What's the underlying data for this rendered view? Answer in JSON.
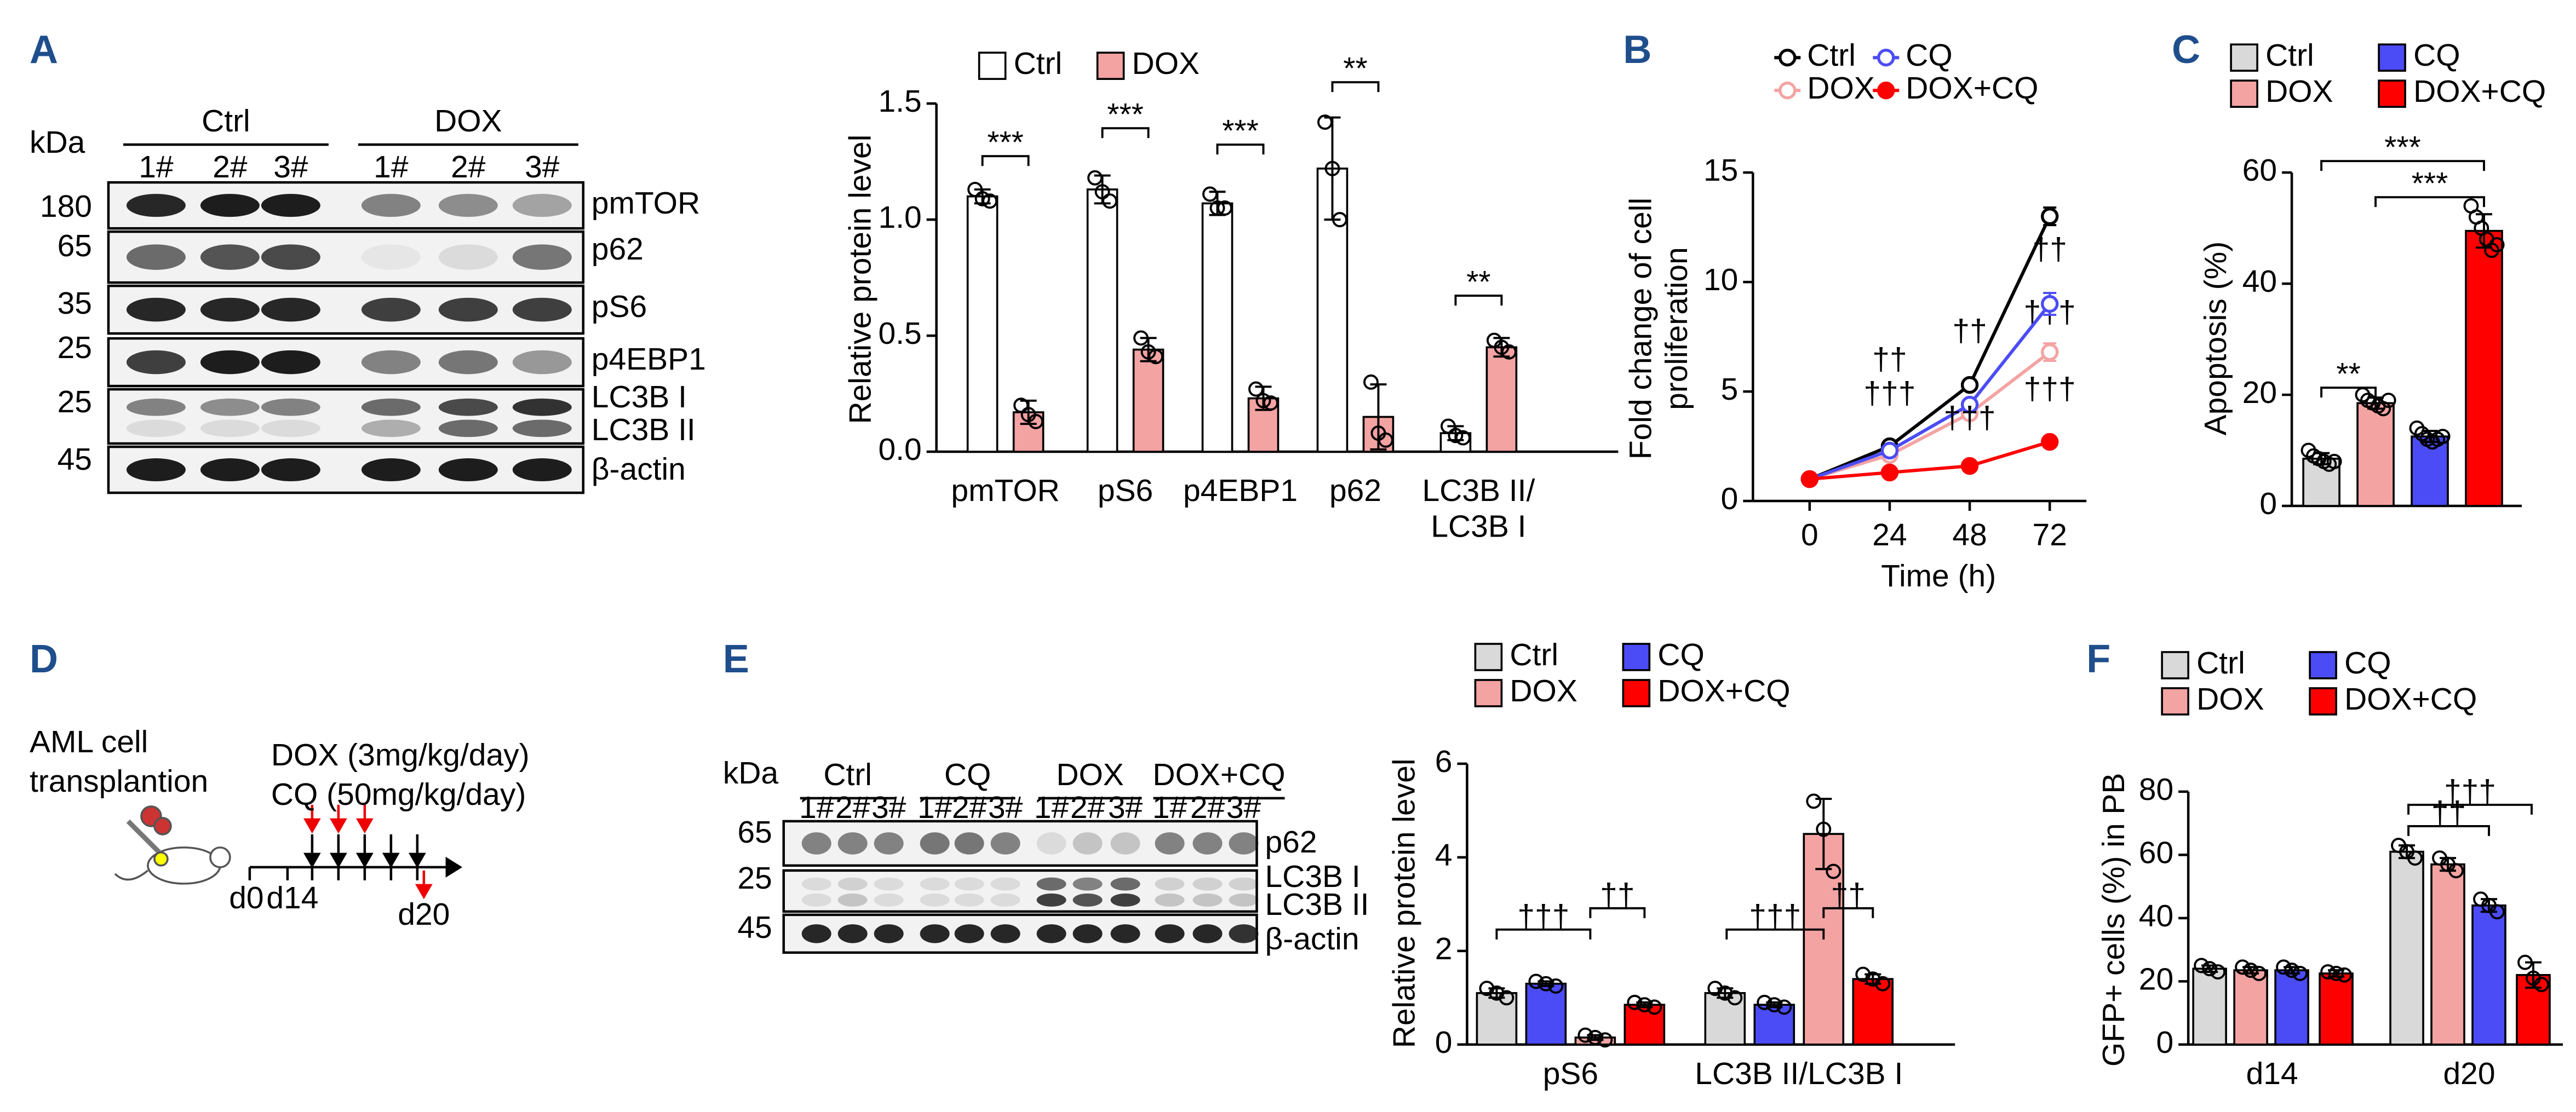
{
  "panels": [
    "A",
    "B",
    "C",
    "D",
    "E",
    "F"
  ],
  "blot_a": {
    "unit": "kDa",
    "groups": [
      "Ctrl",
      "DOX"
    ],
    "lanes": [
      "1#",
      "2#",
      "3#",
      "1#",
      "2#",
      "3#"
    ],
    "rows": [
      {
        "marker": "180",
        "labels": [
          "pmTOR"
        ]
      },
      {
        "marker": "65",
        "labels": [
          "p62"
        ]
      },
      {
        "marker": "35",
        "labels": [
          "pS6"
        ]
      },
      {
        "marker": "25",
        "labels": [
          "p4EBP1"
        ]
      },
      {
        "marker": "25",
        "labels": [
          "LC3B I",
          "LC3B II"
        ]
      },
      {
        "marker": "45",
        "labels": [
          "β-actin"
        ]
      }
    ]
  },
  "diagram_d": {
    "lines": [
      "AML cell",
      "transplantion"
    ],
    "dox": "DOX (3mg/kg/day)",
    "cq": "CQ (50mg/kg/day)",
    "days": [
      "d0",
      "d14",
      "d20"
    ]
  },
  "blot_e": {
    "unit": "kDa",
    "groups": [
      "Ctrl",
      "CQ",
      "DOX",
      "DOX+CQ"
    ],
    "lanes": [
      "1#",
      "2#",
      "3#",
      "1#",
      "2#",
      "3#",
      "1#",
      "2#",
      "3#",
      "1#",
      "2#",
      "3#"
    ],
    "rows": [
      {
        "marker": "65",
        "labels": [
          "p62"
        ]
      },
      {
        "marker": "25",
        "labels": [
          "LC3B I",
          "LC3B II"
        ]
      },
      {
        "marker": "45",
        "labels": [
          "β-actin"
        ]
      }
    ]
  },
  "chart_data": [
    {
      "type": "bar",
      "ylabel": "Relative protein level",
      "categories": [
        "pmTOR",
        "pS6",
        "p4EBP1",
        "p62",
        "LC3B II/\nLC3B I"
      ],
      "ylim": [
        0,
        1.5
      ],
      "yticks": [
        {
          "value": 0,
          "label": "0.0"
        },
        0.5,
        {
          "value": 1,
          "label": "1.0"
        },
        1.5
      ],
      "series": [
        {
          "name": "Ctrl",
          "color": "#ffffff",
          "values": [
            1.1,
            1.13,
            1.07,
            1.22,
            0.08
          ],
          "errors": [
            0.03,
            0.06,
            0.05,
            0.22,
            0.03
          ],
          "points": [
            [
              1.13,
              1.09,
              1.08
            ],
            [
              1.18,
              1.12,
              1.08
            ],
            [
              1.11,
              1.05,
              1.05
            ],
            [
              1.42,
              1.22,
              1.0
            ],
            [
              0.11,
              0.07,
              0.06
            ]
          ]
        },
        {
          "name": "DOX",
          "color": "#f4a3a3",
          "values": [
            0.17,
            0.44,
            0.23,
            0.15,
            0.45
          ],
          "errors": [
            0.05,
            0.05,
            0.05,
            0.14,
            0.04
          ],
          "points": [
            [
              0.2,
              0.16,
              0.13
            ],
            [
              0.49,
              0.43,
              0.41
            ],
            [
              0.27,
              0.22,
              0.21
            ],
            [
              0.3,
              0.08,
              0.05
            ],
            [
              0.48,
              0.45,
              0.43
            ]
          ]
        }
      ],
      "significance": [
        "***",
        "***",
        "***",
        "**",
        "**"
      ]
    },
    {
      "type": "line",
      "xlabel": "Time (h)",
      "ylabel": "Fold change of cell\nproliferation",
      "x": [
        0,
        24,
        48,
        72
      ],
      "xlim": [
        -17,
        83
      ],
      "xticks": [
        0,
        24,
        48,
        72
      ],
      "ylim": [
        0,
        15
      ],
      "yticks": [
        0,
        5,
        10,
        15
      ],
      "series": [
        {
          "name": "Ctrl",
          "color": "#000000",
          "filled": false,
          "values": [
            1,
            2.5,
            5.3,
            13
          ],
          "errors": [
            0.1,
            0.15,
            0.2,
            0.4
          ],
          "annotations": [
            null,
            null,
            null,
            null
          ]
        },
        {
          "name": "DOX",
          "color": "#f4a3a3",
          "filled": false,
          "values": [
            1,
            2.1,
            4,
            6.8
          ],
          "errors": [
            0.1,
            0.15,
            0.2,
            0.4
          ],
          "annotations": [
            null,
            "††",
            "††",
            "†††"
          ]
        },
        {
          "name": "CQ",
          "color": "#4b4cf5",
          "filled": false,
          "values": [
            1,
            2.3,
            4.4,
            9
          ],
          "errors": [
            0.1,
            0.15,
            0.2,
            0.5
          ],
          "annotations": [
            null,
            null,
            null,
            "††"
          ]
        },
        {
          "name": "DOX+CQ",
          "color": "#ff0000",
          "filled": true,
          "values": [
            1,
            1.3,
            1.6,
            2.7
          ],
          "errors": [
            0.1,
            0.1,
            0.1,
            0.2
          ],
          "annotations": [
            null,
            "†††",
            "†††",
            "†††"
          ]
        }
      ]
    },
    {
      "type": "bar",
      "ylabel": "Apoptosis (%)",
      "ylim": [
        0,
        60
      ],
      "yticks": [
        0,
        20,
        40,
        60
      ],
      "series": [
        {
          "name": "Ctrl",
          "color": "#d9d9d9",
          "values": [
            8.5
          ],
          "errors": [
            1
          ],
          "points": [
            [
              10,
              9,
              8.5,
              8,
              7.5,
              8
            ]
          ]
        },
        {
          "name": "DOX",
          "color": "#f4a3a3",
          "values": [
            18.5
          ],
          "errors": [
            1
          ],
          "points": [
            [
              20,
              19,
              18.5,
              18,
              17.5,
              19
            ]
          ]
        },
        {
          "name": "CQ",
          "color": "#4b4cf5",
          "values": [
            12.5
          ],
          "errors": [
            1
          ],
          "points": [
            [
              14,
              13,
              12,
              11.5,
              12,
              12.5
            ]
          ]
        },
        {
          "name": "DOX+CQ",
          "color": "#ff0000",
          "values": [
            49.5
          ],
          "errors": [
            3
          ],
          "points": [
            [
              54,
              52,
              50,
              48,
              46,
              47
            ]
          ]
        }
      ],
      "brackets": [
        "**",
        "***",
        "***"
      ]
    },
    {
      "type": "bar",
      "ylabel": "Relative protein level",
      "categories": [
        "pS6",
        "LC3B II/LC3B I"
      ],
      "ylim": [
        0,
        6
      ],
      "yticks": [
        0,
        2,
        4,
        6
      ],
      "series": [
        {
          "name": "Ctrl",
          "color": "#d9d9d9",
          "values": [
            1.1,
            1.1
          ],
          "errors": [
            0.1,
            0.1
          ],
          "points": [
            [
              1.2,
              1.1,
              1.0
            ],
            [
              1.2,
              1.1,
              1.0
            ]
          ]
        },
        {
          "name": "CQ",
          "color": "#4b4cf5",
          "values": [
            1.3,
            0.85
          ],
          "errors": [
            0.05,
            0.05
          ],
          "points": [
            [
              1.35,
              1.3,
              1.25
            ],
            [
              0.9,
              0.85,
              0.8
            ]
          ]
        },
        {
          "name": "DOX",
          "color": "#f4a3a3",
          "values": [
            0.15,
            4.5
          ],
          "errors": [
            0.05,
            0.75
          ],
          "points": [
            [
              0.2,
              0.15,
              0.1
            ],
            [
              5.2,
              4.6,
              3.7
            ]
          ]
        },
        {
          "name": "DOX+CQ",
          "color": "#ff0000",
          "values": [
            0.85,
            1.4
          ],
          "errors": [
            0.05,
            0.1
          ],
          "points": [
            [
              0.9,
              0.85,
              0.8
            ],
            [
              1.5,
              1.4,
              1.3
            ]
          ]
        }
      ],
      "brackets": [
        "†††",
        "††",
        "†††",
        "††"
      ]
    },
    {
      "type": "bar",
      "ylabel": "GFP+ cells (%) in PB",
      "categories": [
        "d14",
        "d20"
      ],
      "ylim": [
        0,
        80
      ],
      "yticks": [
        0,
        20,
        40,
        60,
        80
      ],
      "series": [
        {
          "name": "Ctrl",
          "color": "#d9d9d9",
          "values": [
            24,
            61
          ],
          "errors": [
            1,
            2
          ],
          "points": [
            [
              25,
              24,
              23
            ],
            [
              63,
              61,
              59
            ]
          ]
        },
        {
          "name": "DOX",
          "color": "#f4a3a3",
          "values": [
            23.5,
            57
          ],
          "errors": [
            1,
            2
          ],
          "points": [
            [
              24.5,
              23.5,
              22.5
            ],
            [
              59,
              57,
              55
            ]
          ]
        },
        {
          "name": "CQ",
          "color": "#4b4cf5",
          "values": [
            23.5,
            44
          ],
          "errors": [
            1,
            2
          ],
          "points": [
            [
              24.5,
              23.5,
              22.5
            ],
            [
              46,
              44,
              42
            ]
          ]
        },
        {
          "name": "DOX+CQ",
          "color": "#ff0000",
          "values": [
            22.5,
            22
          ],
          "errors": [
            1,
            4
          ],
          "points": [
            [
              23,
              22.5,
              22
            ],
            [
              26,
              21,
              19
            ]
          ]
        }
      ],
      "brackets": [
        "††",
        "†††"
      ]
    }
  ]
}
